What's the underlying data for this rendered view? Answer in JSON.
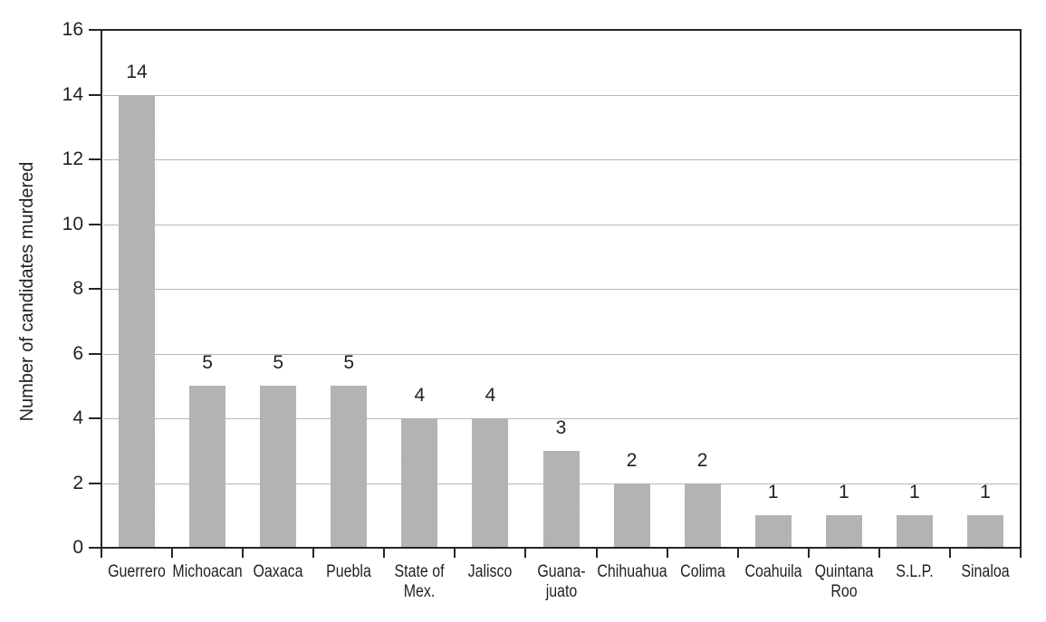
{
  "chart_data": {
    "type": "bar",
    "categories": [
      "Guerrero",
      "Michoacan",
      "Oaxaca",
      "Puebla",
      "State of\nMex.",
      "Jalisco",
      "Guana-\njuato",
      "Chihuahua",
      "Colima",
      "Coahuila",
      "Quintana\nRoo",
      "S.L.P.",
      "Sinaloa"
    ],
    "values": [
      14,
      5,
      5,
      5,
      4,
      4,
      3,
      2,
      2,
      1,
      1,
      1,
      1
    ],
    "title": "",
    "xlabel": "",
    "ylabel": "Number of candidates murdered",
    "ylim": [
      0,
      16
    ],
    "yticks": [
      0,
      2,
      4,
      6,
      8,
      10,
      12,
      14,
      16
    ],
    "grid": true,
    "legend": "none",
    "bar_color": "#b3b3b3",
    "axis_color": "#262626",
    "gridline_color": "#b8b8b8",
    "text_color": "#231f20"
  }
}
